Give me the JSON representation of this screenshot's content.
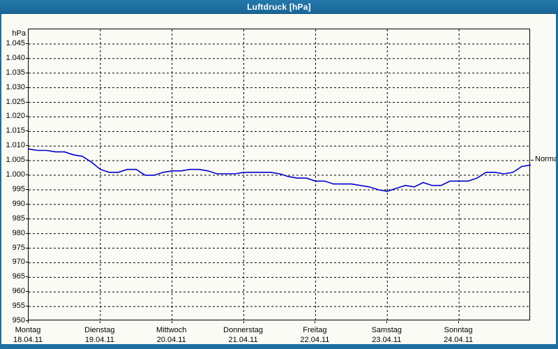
{
  "window": {
    "title": "Luftdruck [hPa]"
  },
  "colors": {
    "chrome_blue": "#1d6fa0",
    "background": "#fbfbf5",
    "line_blue": "#0000cd",
    "grid_black": "#000000"
  },
  "chart_data": {
    "type": "line",
    "title": "Luftdruck [hPa]",
    "ylabel": "hPa",
    "ylim": [
      950,
      1045
    ],
    "y_tick_step": 5,
    "grid": "dashed horizontal lines every 5 hPa, dashed vertical lines at day boundaries",
    "legend_position": "none",
    "y_tick_labels": [
      "1.045",
      "1.040",
      "1.035",
      "1.030",
      "1.025",
      "1.020",
      "1.015",
      "1.010",
      "1.005",
      "1.000",
      "995",
      "990",
      "985",
      "980",
      "975",
      "970",
      "965",
      "960",
      "955",
      "950"
    ],
    "x_days": [
      {
        "label": "Montag",
        "date": "18.04.11"
      },
      {
        "label": "Dienstag",
        "date": "19.04.11"
      },
      {
        "label": "Mittwoch",
        "date": "20.04.11"
      },
      {
        "label": "Donnerstag",
        "date": "21.04.11"
      },
      {
        "label": "Freitag",
        "date": "22.04.11"
      },
      {
        "label": "Samstag",
        "date": "23.04.11"
      },
      {
        "label": "Sonntag",
        "date": "24.04.11"
      }
    ],
    "annotation": {
      "label": "Normal",
      "value": 1005
    },
    "series": [
      {
        "name": "Luftdruck",
        "color": "#0000cd",
        "points_per_day": 8,
        "values": [
          1009,
          1008.5,
          1008.5,
          1008,
          1008,
          1007,
          1006.5,
          1004.5,
          1002,
          1001,
          1001,
          1002,
          1002,
          1000,
          1000,
          1001,
          1001.5,
          1001.5,
          1002,
          1002,
          1001.5,
          1000.5,
          1000.5,
          1000.5,
          1001,
          1001,
          1001,
          1001,
          1000.5,
          999.5,
          999,
          999,
          998,
          998,
          997,
          997,
          997,
          996.5,
          996,
          995,
          994.5,
          995.5,
          996.5,
          996,
          997.5,
          996.5,
          996.5,
          998,
          998,
          998,
          999,
          1001,
          1001,
          1000.5,
          1001,
          1003,
          1003.5
        ]
      }
    ]
  }
}
